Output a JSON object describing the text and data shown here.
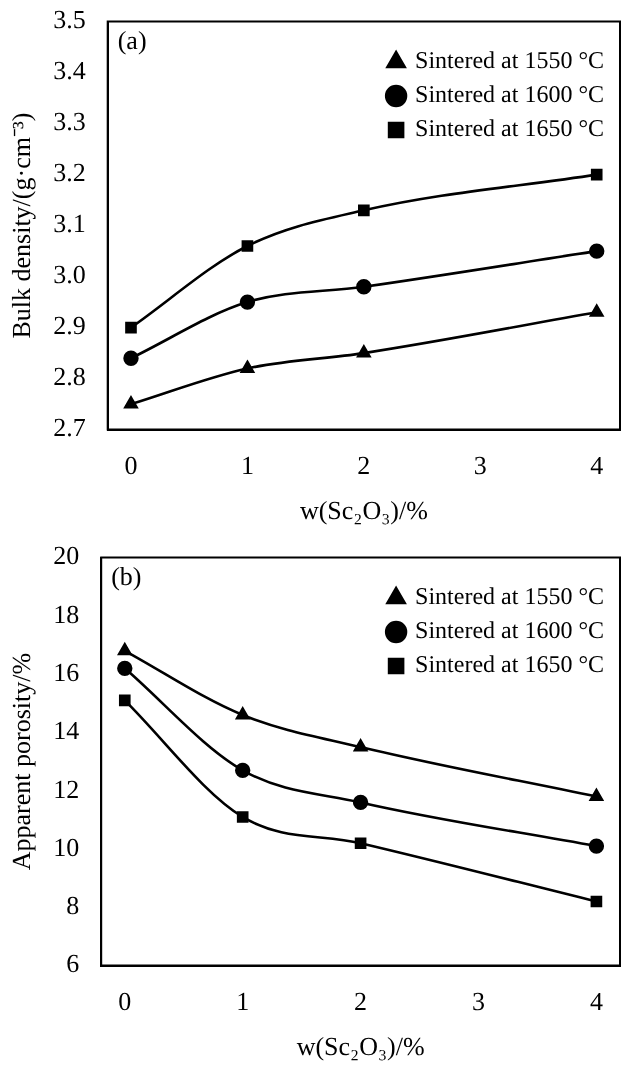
{
  "chart_data": [
    {
      "type": "line",
      "xlabel": "w(Sc₂O₃)/%",
      "ylabel": "Bulk density/(g·cm⁻³)",
      "annotations": [
        "(a)"
      ],
      "x": [
        0,
        1,
        2,
        4
      ],
      "xlim": [
        -0.2,
        4.2
      ],
      "xticks": [
        0,
        1,
        2,
        3,
        4
      ],
      "ylim": [
        2.7,
        3.5
      ],
      "yticks": [
        {
          "value": 2.7,
          "label": "2.7"
        },
        {
          "value": 2.8,
          "label": "2.8"
        },
        {
          "value": 2.9,
          "label": "2.9"
        },
        {
          "value": 3.0,
          "label": "3.0"
        },
        {
          "value": 3.1,
          "label": "3.1"
        },
        {
          "value": 3.2,
          "label": "3.2"
        },
        {
          "value": 3.3,
          "label": "3.3"
        },
        {
          "value": 3.4,
          "label": "3.4"
        },
        {
          "value": 3.5,
          "label": "3.5"
        }
      ],
      "grid": false,
      "legend": "top right",
      "line_style": "solid",
      "series": [
        {
          "name": "Sintered at 1550 °C",
          "color": "#000000",
          "marker": "triangle",
          "values": [
            2.75,
            2.82,
            2.85,
            2.93
          ]
        },
        {
          "name": "Sintered at 1600 °C",
          "color": "#000000",
          "marker": "circle",
          "values": [
            2.84,
            2.95,
            2.98,
            3.05
          ]
        },
        {
          "name": "Sintered at 1650 °C",
          "color": "#000000",
          "marker": "square",
          "values": [
            2.9,
            3.06,
            3.13,
            3.2
          ]
        }
      ]
    },
    {
      "type": "line",
      "xlabel": "w(Sc₂O₃)/%",
      "ylabel": "Apparent porosity/%",
      "annotations": [
        "(b)"
      ],
      "x": [
        0,
        1,
        2,
        4
      ],
      "xlim": [
        -0.2,
        4.2
      ],
      "xticks": [
        0,
        1,
        2,
        3,
        4
      ],
      "ylim": [
        6,
        20
      ],
      "yticks": [
        6,
        8,
        10,
        12,
        14,
        16,
        18,
        20
      ],
      "grid": false,
      "legend": "top right",
      "line_style": "solid",
      "series": [
        {
          "name": "Sintered at 1550 °C",
          "color": "#000000",
          "marker": "triangle",
          "values": [
            16.8,
            14.6,
            13.5,
            11.8
          ]
        },
        {
          "name": "Sintered at 1600 °C",
          "color": "#000000",
          "marker": "circle",
          "values": [
            16.2,
            12.7,
            11.6,
            10.1
          ]
        },
        {
          "name": "Sintered at 1650 °C",
          "color": "#000000",
          "marker": "square",
          "values": [
            15.1,
            11.1,
            10.2,
            8.2
          ]
        }
      ]
    }
  ]
}
